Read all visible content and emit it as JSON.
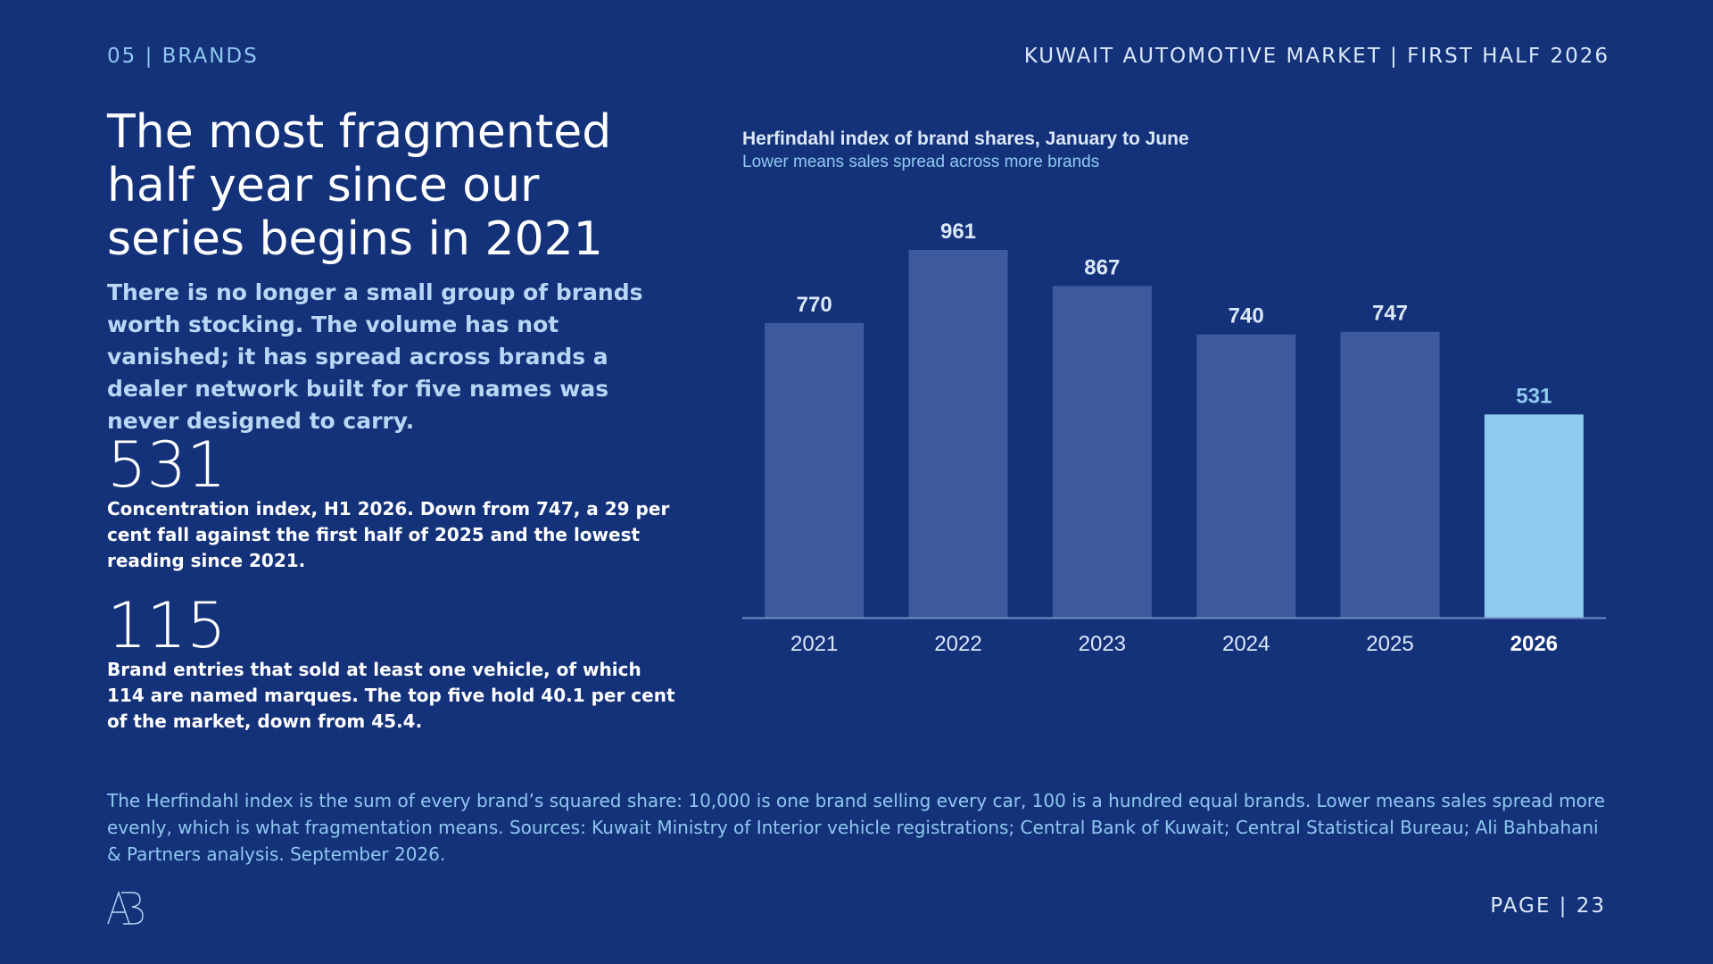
{
  "header": {
    "section_label": "05 | BRANDS",
    "report_title": "KUWAIT AUTOMOTIVE MARKET | FIRST HALF 2026"
  },
  "headline": "The most fragmented half year since our series begins in 2021",
  "lede": "There is no longer a small group of brands worth stocking. The volume has not vanished; it has spread across brands a dealer network built for five names was never designed to carry.",
  "stats": [
    {
      "number": "531",
      "text": "Concentration index, H1 2026. Down from 747, a 29 per cent fall against the first half of 2025 and the lowest reading since 2021."
    },
    {
      "number": "115",
      "text": "Brand entries that sold at least one vehicle, of which 114 are named marques. The top five hold 40.1 per cent of the market, down from 45.4."
    }
  ],
  "colors": {
    "background": "#14327a",
    "bar": "#3d5a9e",
    "bar_highlight": "#8ecbee",
    "label": "#dbe8f8",
    "label_highlight": "#8ecbee"
  },
  "chart_data": {
    "type": "bar",
    "title": "Herfindahl index of brand shares, January to June",
    "subtitle": "Lower means sales spread across more brands",
    "categories": [
      "2021",
      "2022",
      "2023",
      "2024",
      "2025",
      "2026"
    ],
    "values": [
      770,
      961,
      867,
      740,
      747,
      531
    ],
    "highlight_category": "2026",
    "ylim": [
      0,
      1000
    ],
    "grid": false,
    "data_labels": true
  },
  "footnote": "The Herfindahl index is the sum of every brand’s squared share: 10,000 is one brand selling every car, 100 is a hundred equal brands. Lower means sales spread more evenly, which is what fragmentation means. Sources: Kuwait Ministry of Interior vehicle registrations; Central Bank of Kuwait; Central Statistical Bureau; Ali Bahbahani & Partners analysis. September 2026.",
  "logo_icon": "ab-monogram-icon",
  "page_label": "PAGE | 23"
}
